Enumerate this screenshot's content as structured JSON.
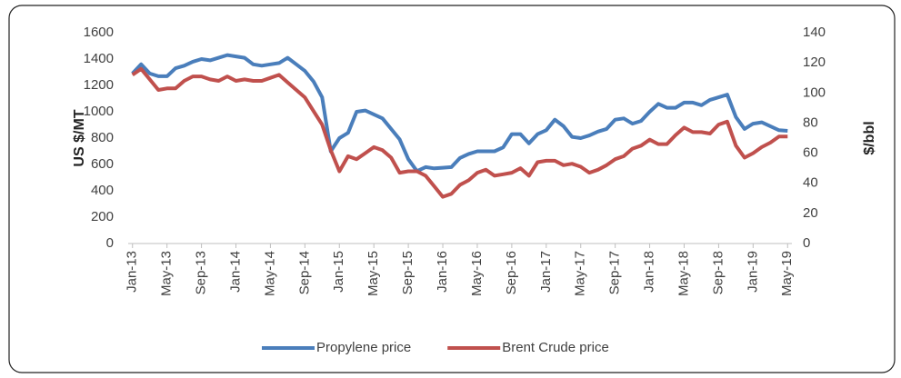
{
  "chart_data": {
    "type": "line",
    "categories": [
      "Jan-13",
      null,
      null,
      null,
      "May-13",
      null,
      null,
      null,
      "Sep-13",
      null,
      null,
      null,
      "Jan-14",
      null,
      null,
      null,
      "May-14",
      null,
      null,
      null,
      "Sep-14",
      null,
      null,
      null,
      "Jan-15",
      null,
      null,
      null,
      "May-15",
      null,
      null,
      null,
      "Sep-15",
      null,
      null,
      null,
      "Jan-16",
      null,
      null,
      null,
      "May-16",
      null,
      null,
      null,
      "Sep-16",
      null,
      null,
      null,
      "Jan-17",
      null,
      null,
      null,
      "May-17",
      null,
      null,
      null,
      "Sep-17",
      null,
      null,
      null,
      "Jan-18",
      null,
      null,
      null,
      "May-18",
      null,
      null,
      null,
      "Sep-18",
      null,
      null,
      null,
      "Jan-19",
      null,
      null,
      null,
      "May-19"
    ],
    "ylabel": "US $/MT",
    "y2label": "$/bbl",
    "ylim": [
      0,
      1600
    ],
    "yticks": [
      0,
      200,
      400,
      600,
      800,
      1000,
      1200,
      1400,
      1600
    ],
    "y2lim": [
      0,
      140
    ],
    "y2ticks": [
      0,
      20,
      40,
      60,
      80,
      100,
      120,
      140
    ],
    "grid": false,
    "legend": "bottom",
    "series": [
      {
        "name": "Propylene price",
        "color": "#4a7ebb",
        "values": [
          1290,
          1360,
          1290,
          1270,
          1270,
          1330,
          1350,
          1380,
          1400,
          1390,
          1410,
          1430,
          1420,
          1410,
          1360,
          1350,
          1360,
          1370,
          1410,
          1360,
          1310,
          1230,
          1110,
          700,
          800,
          840,
          1000,
          1010,
          980,
          950,
          870,
          790,
          640,
          550,
          580,
          570,
          575,
          580,
          650,
          680,
          700,
          700,
          700,
          730,
          830,
          830,
          760,
          830,
          860,
          940,
          890,
          810,
          800,
          820,
          850,
          870,
          940,
          950,
          910,
          930,
          1000,
          1060,
          1030,
          1030,
          1070,
          1070,
          1050,
          1090,
          1110,
          1130,
          960,
          870,
          910,
          920,
          890,
          860,
          855
        ]
      },
      {
        "name": "Brent Crude price",
        "color": "#c0504d",
        "axis": "y2",
        "values": [
          112,
          116,
          109,
          102,
          103,
          103,
          108,
          111,
          111,
          109,
          108,
          111,
          108,
          109,
          108,
          108,
          110,
          112,
          107,
          102,
          97,
          88,
          79,
          62,
          48,
          58,
          56,
          60,
          64,
          62,
          57,
          47,
          48,
          48,
          45,
          38,
          31,
          33,
          39,
          42,
          47,
          49,
          45,
          46,
          47,
          50,
          45,
          54,
          55,
          55,
          52,
          53,
          51,
          47,
          49,
          52,
          56,
          58,
          63,
          65,
          69,
          66,
          66,
          72,
          77,
          74,
          74,
          73,
          79,
          81,
          65,
          57,
          60,
          64,
          67,
          71,
          71
        ]
      }
    ]
  }
}
